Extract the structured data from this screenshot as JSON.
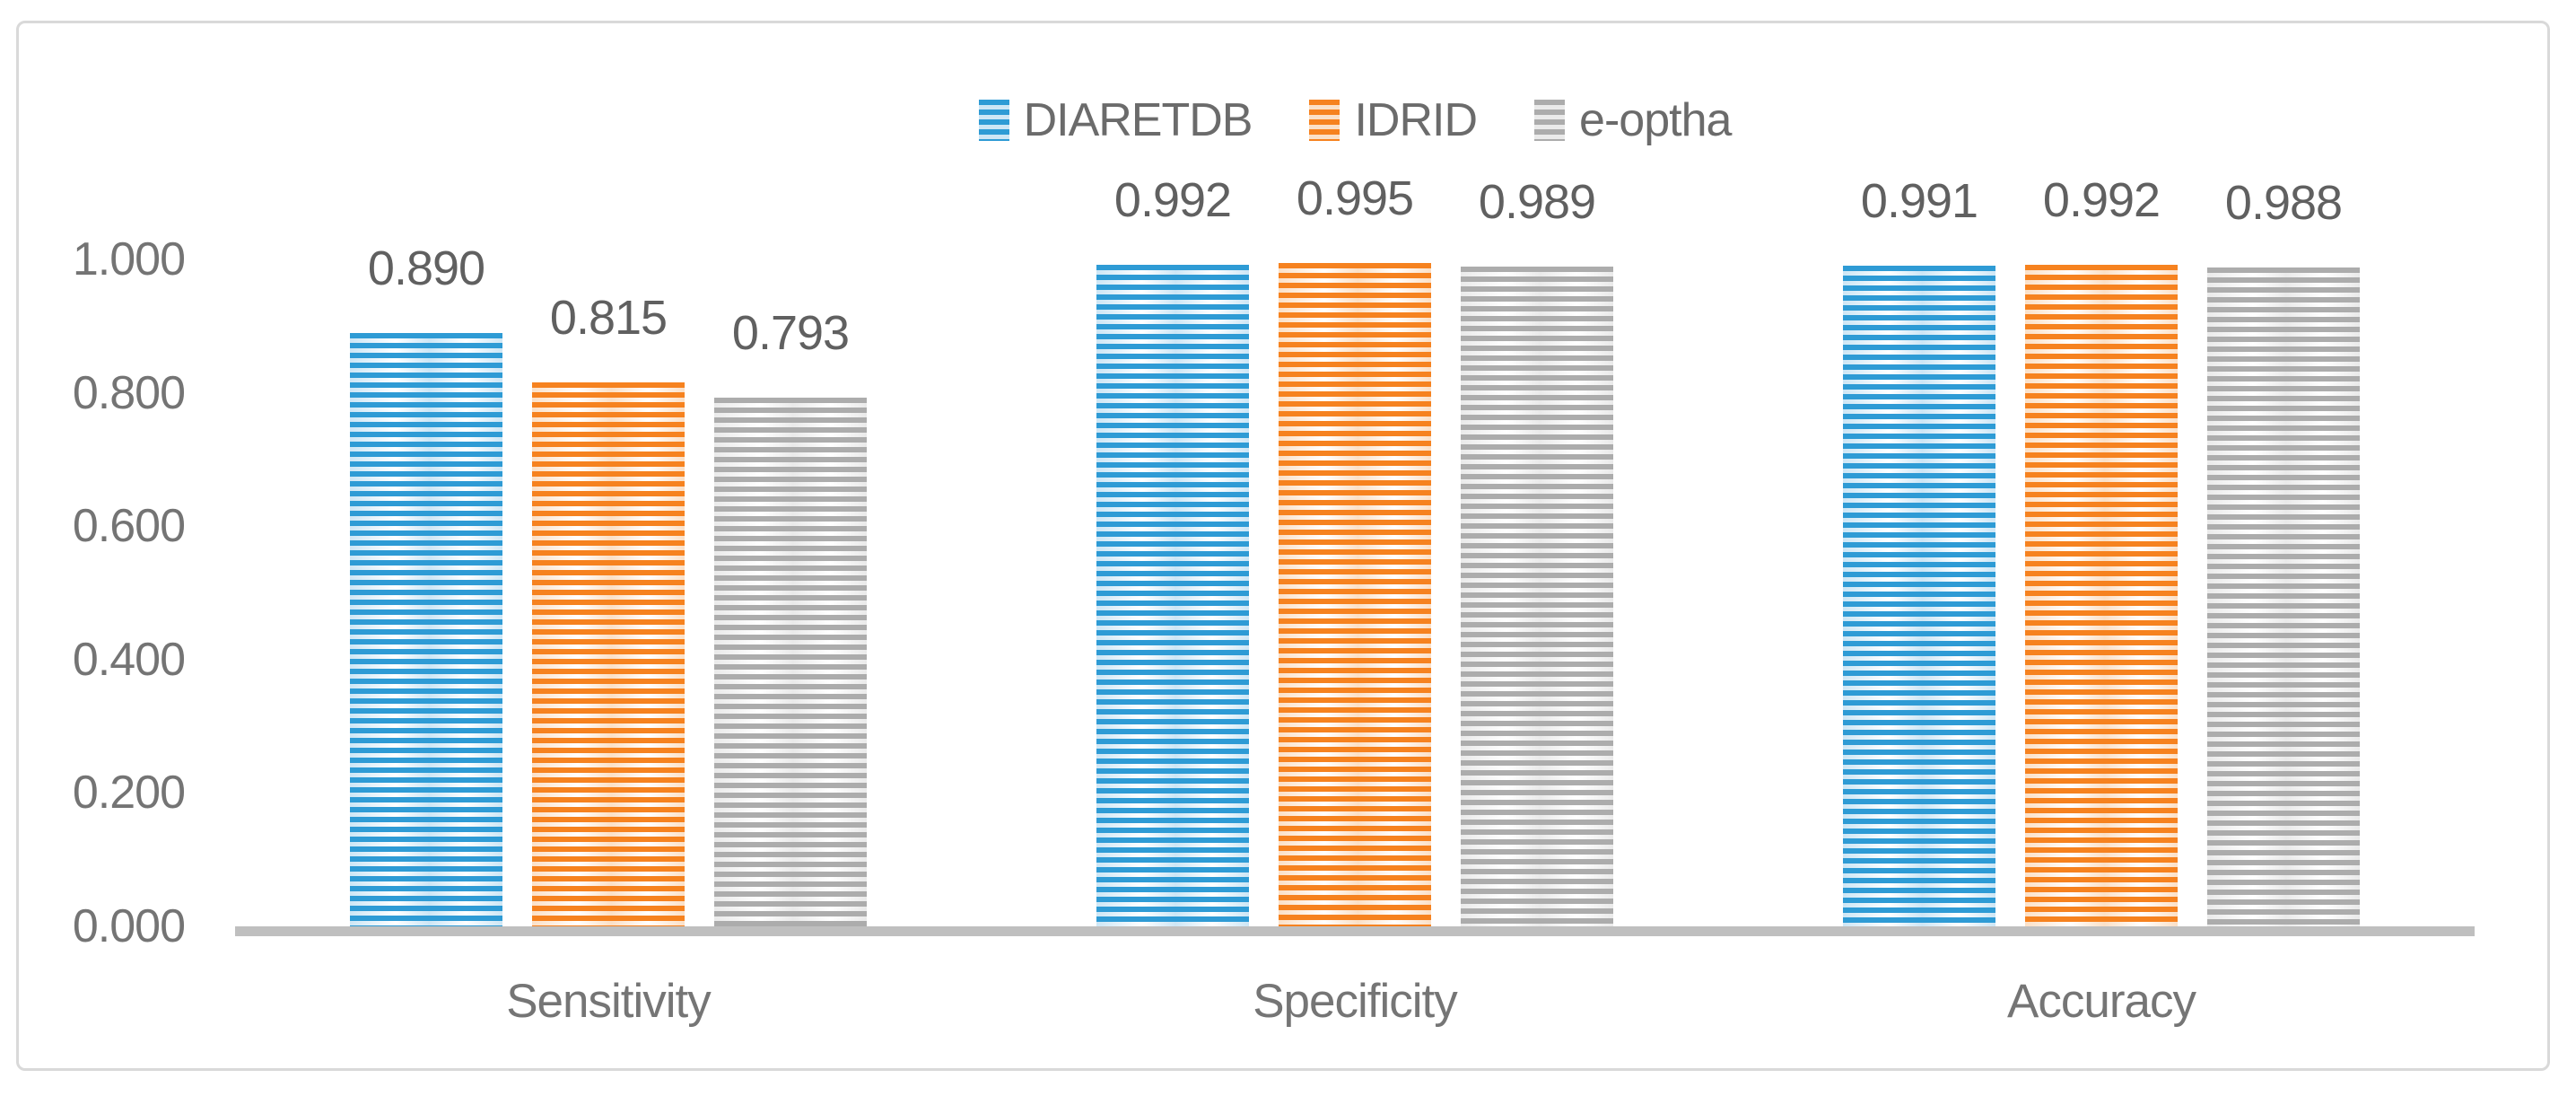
{
  "figure": {
    "background": "#ffffff",
    "border_color": "#d9d9d9",
    "axis_line_color": "#bfbfbf",
    "text_color": "#747474",
    "data_label_color": "#606060"
  },
  "chart_data": {
    "type": "bar",
    "title": "",
    "xlabel": "",
    "ylabel": "",
    "grid": false,
    "legend_position": "top",
    "bar_fill_pattern": "horizontal-stripes",
    "categories": [
      "Sensitivity",
      "Specificity",
      "Accuracy"
    ],
    "series": [
      {
        "name": "DIARETDB",
        "color": "#2e9bd5",
        "color_light": "#cde6f5",
        "values": [
          0.89,
          0.992,
          0.991
        ]
      },
      {
        "name": "IDRID",
        "color": "#f6821f",
        "color_light": "#fbe0c7",
        "values": [
          0.815,
          0.995,
          0.992
        ]
      },
      {
        "name": "e-optha",
        "color": "#acacac",
        "color_light": "#eaeaea",
        "values": [
          0.793,
          0.989,
          0.988
        ]
      }
    ],
    "data_label_decimals": 3,
    "y_axis": {
      "min": 0.0,
      "max": 1.0,
      "step": 0.2,
      "tick_labels": [
        "0.000",
        "0.200",
        "0.400",
        "0.600",
        "0.800",
        "1.000"
      ]
    }
  }
}
